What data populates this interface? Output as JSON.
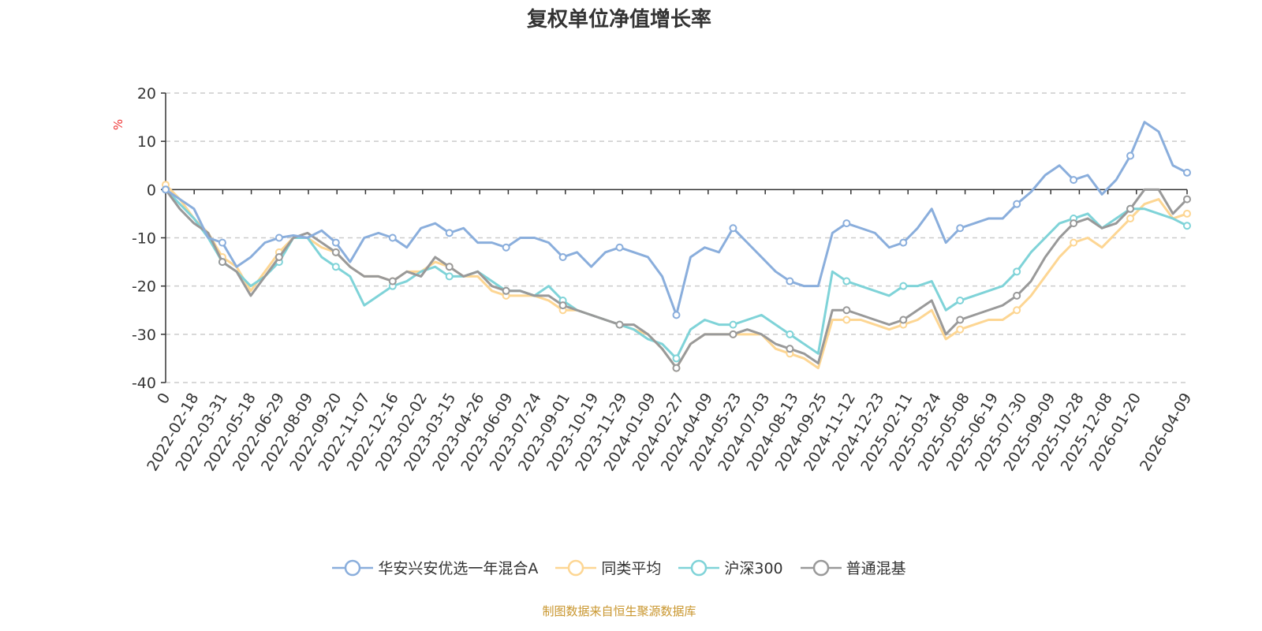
{
  "chart_data": {
    "type": "line",
    "title": "复权单位净值增长率",
    "ylabel": "%",
    "xlabel": "",
    "ylim": [
      -40,
      20
    ],
    "yticks": [
      20,
      10,
      0,
      -10,
      -20,
      -30,
      -40
    ],
    "grid": true,
    "legend_position": "bottom",
    "x_tick_labels": [
      "0",
      "2022-02-18",
      "2022-03-31",
      "2022-05-18",
      "2022-06-29",
      "2022-08-09",
      "2022-09-20",
      "2022-11-07",
      "2022-12-16",
      "2023-02-02",
      "2023-03-15",
      "2023-04-26",
      "2023-06-09",
      "2023-07-24",
      "2023-09-01",
      "2023-10-19",
      "2023-11-29",
      "2024-01-09",
      "2024-02-27",
      "2024-04-09",
      "2024-05-23",
      "2024-07-03",
      "2024-08-13",
      "2024-09-25",
      "2024-11-12",
      "2024-12-23",
      "2025-02-11",
      "2025-03-24",
      "2025-05-08",
      "2025-06-19",
      "2025-07-30",
      "2025-09-09",
      "2025-10-28",
      "2025-12-08",
      "2026-01-20",
      "2026-04-09"
    ],
    "series": [
      {
        "name": "华安兴安优选一年混合A",
        "color": "#8aaedc",
        "values": [
          0,
          -2,
          -4,
          -10,
          -11,
          -16,
          -14,
          -11,
          -10,
          -9.5,
          -10,
          -8.5,
          -11,
          -15,
          -10,
          -9,
          -10,
          -12,
          -8,
          -7,
          -9,
          -8,
          -11,
          -11,
          -12,
          -10,
          -10,
          -11,
          -14,
          -13,
          -16,
          -13,
          -12,
          -13,
          -14,
          -18,
          -26,
          -14,
          -12,
          -13,
          -8,
          -11,
          -14,
          -17,
          -19,
          -20,
          -20,
          -9,
          -7,
          -8,
          -9,
          -12,
          -11,
          -8,
          -4,
          -11,
          -8,
          -7,
          -6,
          -6,
          -3,
          -0.5,
          3,
          5,
          2,
          3,
          -1,
          2,
          7,
          14,
          12,
          5,
          3.5
        ]
      },
      {
        "name": "同类平均",
        "color": "#fdd693",
        "values": [
          1,
          -2,
          -6,
          -9,
          -14,
          -16,
          -21,
          -17,
          -13,
          -10,
          -10,
          -12,
          -13,
          -16,
          -18,
          -18,
          -19,
          -17,
          -17,
          -15,
          -16,
          -18,
          -18,
          -21,
          -22,
          -22,
          -22,
          -23,
          -25,
          -25,
          -26,
          -27,
          -28,
          -29,
          -30,
          -33,
          -37,
          -32,
          -30,
          -30,
          -30,
          -30,
          -30,
          -33,
          -34,
          -35,
          -37,
          -27,
          -27,
          -27,
          -28,
          -29,
          -28,
          -27,
          -25,
          -31,
          -29,
          -28,
          -27,
          -27,
          -25,
          -22,
          -18,
          -14,
          -11,
          -10,
          -12,
          -9,
          -6,
          -3,
          -2,
          -6,
          -5
        ]
      },
      {
        "name": "沪深300",
        "color": "#7fd3d8",
        "values": [
          0,
          -3,
          -6,
          -10,
          -15,
          -17,
          -20,
          -18,
          -15,
          -10,
          -10,
          -14,
          -16,
          -18,
          -24,
          -22,
          -20,
          -19,
          -17,
          -16,
          -18,
          -18,
          -17,
          -19,
          -21,
          -21,
          -22,
          -20,
          -23,
          -25,
          -26,
          -27,
          -28,
          -29,
          -31,
          -32,
          -35,
          -29,
          -27,
          -28,
          -28,
          -27,
          -26,
          -28,
          -30,
          -32,
          -34,
          -17,
          -19,
          -20,
          -21,
          -22,
          -20,
          -20,
          -19,
          -25,
          -23,
          -22,
          -21,
          -20,
          -17,
          -13,
          -10,
          -7,
          -6,
          -5,
          -8,
          -6,
          -4,
          -4,
          -5,
          -6,
          -7.5
        ]
      },
      {
        "name": "普通混基",
        "color": "#999999",
        "values": [
          0,
          -4,
          -7,
          -9,
          -15,
          -17,
          -22,
          -18,
          -14,
          -10,
          -9,
          -11,
          -13,
          -16,
          -18,
          -18,
          -19,
          -17,
          -18,
          -14,
          -16,
          -18,
          -17,
          -20,
          -21,
          -21,
          -22,
          -22,
          -24,
          -25,
          -26,
          -27,
          -28,
          -28,
          -30,
          -33,
          -37,
          -32,
          -30,
          -30,
          -30,
          -29,
          -30,
          -32,
          -33,
          -34,
          -36,
          -25,
          -25,
          -26,
          -27,
          -28,
          -27,
          -25,
          -23,
          -30,
          -27,
          -26,
          -25,
          -24,
          -22,
          -19,
          -14,
          -10,
          -7,
          -6,
          -8,
          -7,
          -4,
          0,
          0,
          -5,
          -2
        ]
      }
    ]
  },
  "footer": "制图数据来自恒生聚源数据库"
}
